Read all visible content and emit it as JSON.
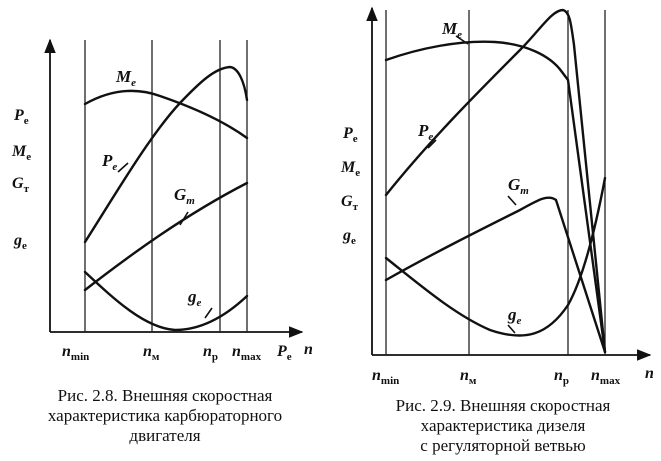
{
  "figure_left": {
    "ylabels": {
      "pe": {
        "main": "P",
        "sub": "e"
      },
      "me": {
        "main": "M",
        "sub": "e"
      },
      "gt": {
        "main": "G",
        "sub": "т"
      },
      "ge": {
        "main": "g",
        "sub": "e"
      }
    },
    "xlabels": {
      "nmin": {
        "main": "n",
        "sub": "min"
      },
      "nm": {
        "main": "n",
        "sub": "м"
      },
      "np": {
        "main": "n",
        "sub": "p"
      },
      "nmax": {
        "main": "n",
        "sub": "max"
      },
      "axis_pe": {
        "main": "P",
        "sub": "e"
      },
      "axis_n": "n"
    },
    "curve_labels": {
      "me": {
        "main": "M",
        "sub": "e"
      },
      "pe": {
        "main": "P",
        "sub": "e"
      },
      "gt": {
        "main": "G",
        "sub": "т"
      },
      "ge": {
        "main": "g",
        "sub": "e"
      }
    },
    "caption": [
      "Рис. 2.8. Внешняя скоростная",
      "характеристика карбюраторного",
      "двигателя"
    ]
  },
  "figure_right": {
    "ylabels": {
      "pe": {
        "main": "P",
        "sub": "e"
      },
      "me": {
        "main": "M",
        "sub": "e"
      },
      "gt": {
        "main": "G",
        "sub": "т"
      },
      "ge": {
        "main": "g",
        "sub": "e"
      }
    },
    "xlabels": {
      "nmin": {
        "main": "n",
        "sub": "min"
      },
      "nm": {
        "main": "n",
        "sub": "м"
      },
      "np": {
        "main": "n",
        "sub": "p"
      },
      "nmax": {
        "main": "n",
        "sub": "max"
      },
      "axis_n": "n"
    },
    "curve_labels": {
      "me": {
        "main": "M",
        "sub": "e"
      },
      "pe": {
        "main": "P",
        "sub": "e"
      },
      "gt": {
        "main": "G",
        "sub": "т"
      },
      "ge": {
        "main": "g",
        "sub": "e"
      }
    },
    "caption": [
      "Рис. 2.9. Внешняя скоростная",
      "характеристика дизеля",
      "с регуляторной ветвью"
    ]
  }
}
